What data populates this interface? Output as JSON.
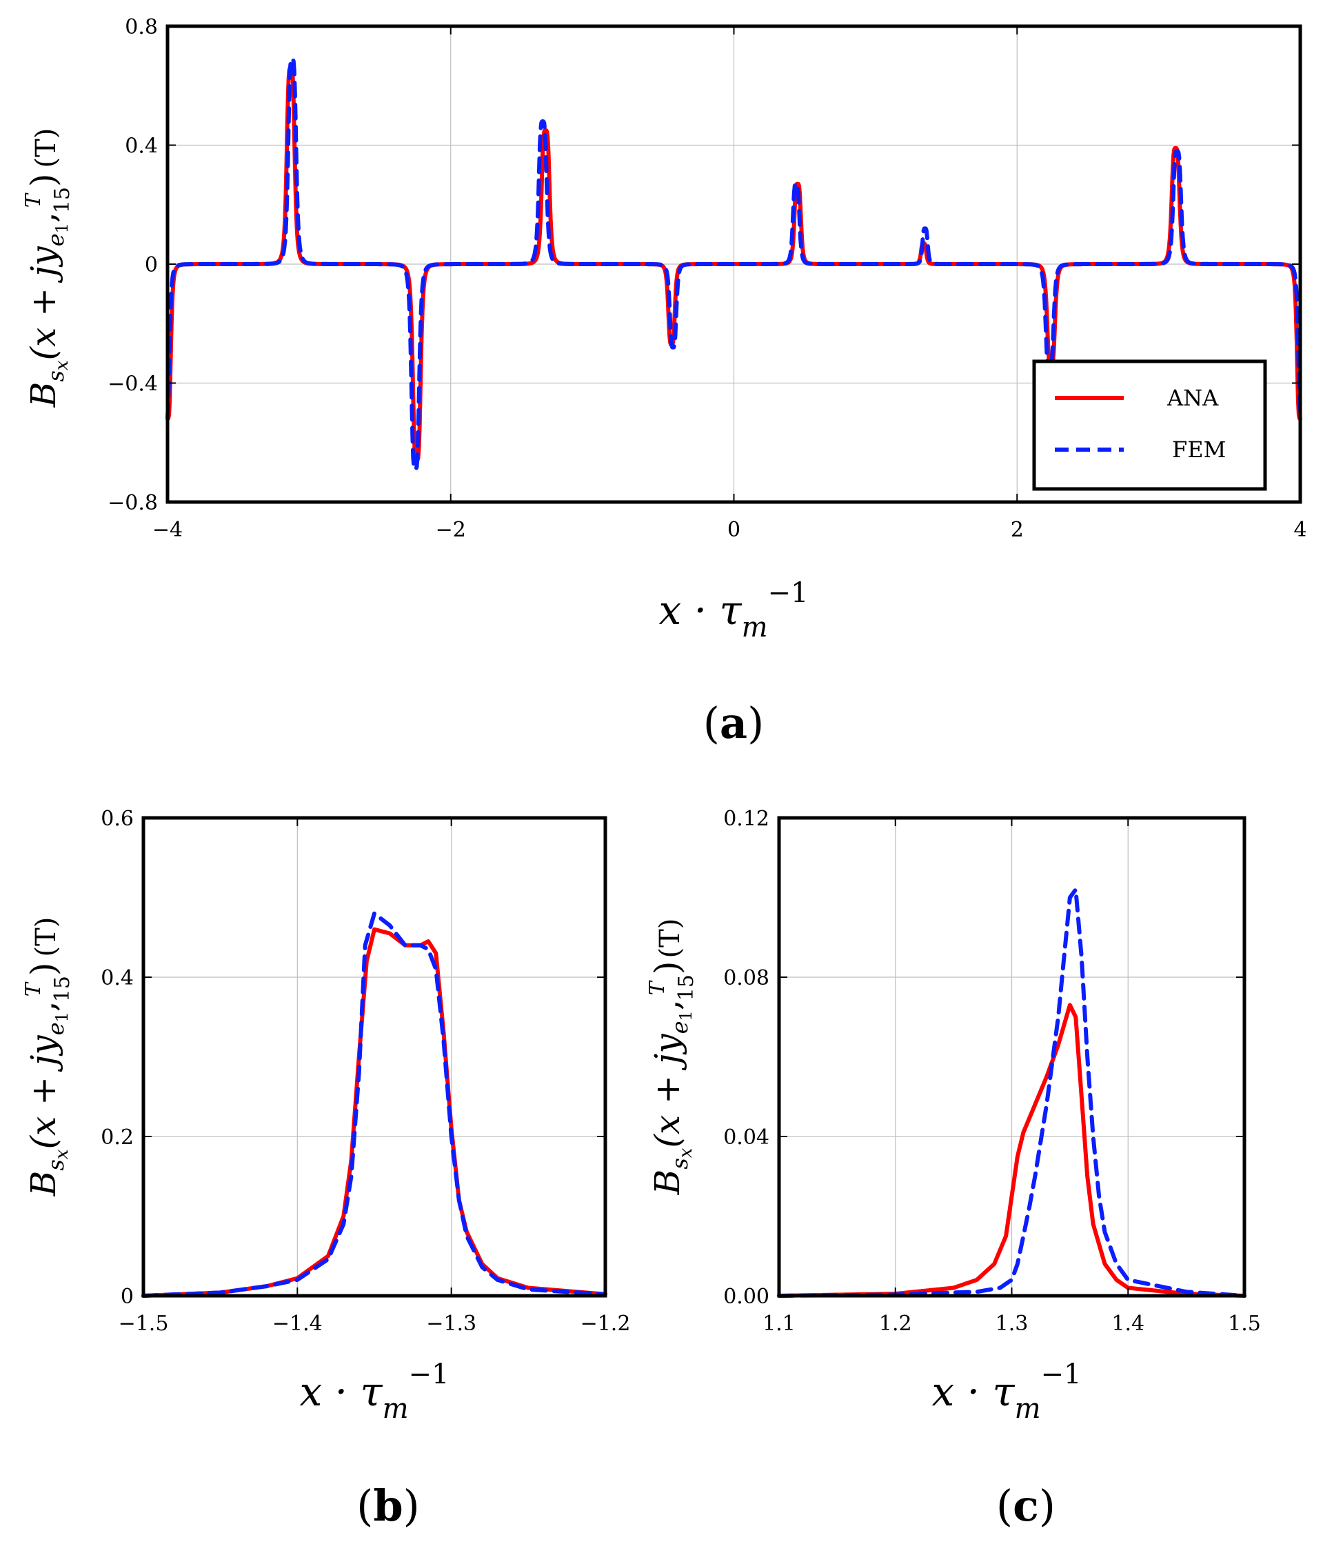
{
  "colors": {
    "ana": "#ff0000",
    "fem": "#0a1eff",
    "frame": "#000000"
  },
  "ylabel_parts": {
    "b": "B",
    "s": "s",
    "x_sub": "x",
    "open": "(x + jy",
    "e": "e",
    "one": "1",
    "comma": ",",
    "T": "T",
    "fifteen": "15",
    "close": ")",
    "unit": "(T)"
  },
  "xlabel_parts": {
    "main": "x · τ",
    "sub": "m",
    "sup": "−1"
  },
  "chart_data": [
    {
      "id": "a",
      "panel_label": "(a)",
      "panel_letter": "a",
      "type": "line",
      "xlim": [
        -4,
        4
      ],
      "ylim": [
        -0.8,
        0.8
      ],
      "xticks": [
        -4,
        -2,
        0,
        2,
        4
      ],
      "xtick_labels": [
        "−4",
        "−2",
        "0",
        "2",
        "4"
      ],
      "yticks": [
        -0.8,
        -0.4,
        0,
        0.4,
        0.8
      ],
      "ytick_labels": [
        "−0.8",
        "−0.4",
        "0",
        "0.4",
        "0.8"
      ],
      "legend": {
        "position": "bottom-right",
        "entries": [
          "ANA",
          "FEM"
        ]
      },
      "series": [
        {
          "name": "ANA",
          "style": "solid",
          "peaks": [
            {
              "x": -4.0,
              "a": -0.52,
              "w": 0.025
            },
            {
              "x": -3.13,
              "a": 0.66,
              "w": 0.03
            },
            {
              "x": -2.24,
              "a": -0.66,
              "w": 0.03
            },
            {
              "x": -1.33,
              "a": 0.45,
              "w": 0.03
            },
            {
              "x": -0.44,
              "a": -0.27,
              "w": 0.025
            },
            {
              "x": 0.45,
              "a": 0.27,
              "w": 0.025
            },
            {
              "x": 1.34,
              "a": 0.07,
              "w": 0.02
            },
            {
              "x": 2.24,
              "a": -0.34,
              "w": 0.03
            },
            {
              "x": 3.12,
              "a": 0.39,
              "w": 0.03
            },
            {
              "x": 4.0,
              "a": -0.52,
              "w": 0.025
            }
          ]
        },
        {
          "name": "FEM",
          "style": "dashed",
          "peaks": [
            {
              "x": -4.01,
              "a": -0.53,
              "w": 0.025
            },
            {
              "x": -3.12,
              "a": 0.69,
              "w": 0.03
            },
            {
              "x": -2.25,
              "a": -0.69,
              "w": 0.03
            },
            {
              "x": -1.35,
              "a": 0.48,
              "w": 0.03
            },
            {
              "x": -0.43,
              "a": -0.28,
              "w": 0.025
            },
            {
              "x": 0.44,
              "a": 0.27,
              "w": 0.025
            },
            {
              "x": 1.35,
              "a": 0.12,
              "w": 0.02
            },
            {
              "x": 2.23,
              "a": -0.36,
              "w": 0.03
            },
            {
              "x": 3.13,
              "a": 0.38,
              "w": 0.03
            },
            {
              "x": 4.01,
              "a": -0.53,
              "w": 0.025
            }
          ]
        }
      ]
    },
    {
      "id": "b",
      "panel_label": "(b)",
      "panel_letter": "b",
      "type": "line",
      "xlim": [
        -1.5,
        -1.2
      ],
      "ylim": [
        0,
        0.6
      ],
      "xticks": [
        -1.5,
        -1.4,
        -1.3,
        -1.2
      ],
      "xtick_labels": [
        "−1.5",
        "−1.4",
        "−1.3",
        "−1.2"
      ],
      "yticks": [
        0,
        0.2,
        0.4,
        0.6
      ],
      "ytick_labels": [
        "0",
        "0.2",
        "0.4",
        "0.6"
      ],
      "series": [
        {
          "name": "ANA",
          "style": "solid",
          "x": [
            -1.5,
            -1.45,
            -1.42,
            -1.4,
            -1.38,
            -1.37,
            -1.365,
            -1.36,
            -1.355,
            -1.35,
            -1.34,
            -1.33,
            -1.32,
            -1.315,
            -1.31,
            -1.305,
            -1.3,
            -1.295,
            -1.29,
            -1.28,
            -1.27,
            -1.25,
            -1.2
          ],
          "y": [
            0.0,
            0.004,
            0.012,
            0.022,
            0.05,
            0.1,
            0.17,
            0.3,
            0.42,
            0.46,
            0.455,
            0.44,
            0.44,
            0.445,
            0.43,
            0.33,
            0.21,
            0.12,
            0.08,
            0.04,
            0.022,
            0.01,
            0.002
          ]
        },
        {
          "name": "FEM",
          "style": "dashed",
          "x": [
            -1.5,
            -1.45,
            -1.42,
            -1.4,
            -1.38,
            -1.37,
            -1.365,
            -1.36,
            -1.356,
            -1.35,
            -1.34,
            -1.33,
            -1.32,
            -1.315,
            -1.31,
            -1.305,
            -1.3,
            -1.295,
            -1.29,
            -1.28,
            -1.27,
            -1.25,
            -1.2
          ],
          "y": [
            0.0,
            0.004,
            0.012,
            0.02,
            0.046,
            0.09,
            0.15,
            0.28,
            0.44,
            0.48,
            0.465,
            0.44,
            0.44,
            0.435,
            0.41,
            0.32,
            0.2,
            0.12,
            0.075,
            0.036,
            0.02,
            0.008,
            0.002
          ]
        }
      ]
    },
    {
      "id": "c",
      "panel_label": "(c)",
      "panel_letter": "c",
      "type": "line",
      "xlim": [
        1.1,
        1.5
      ],
      "ylim": [
        0,
        0.12
      ],
      "xticks": [
        1.1,
        1.2,
        1.3,
        1.4,
        1.5
      ],
      "xtick_labels": [
        "1.1",
        "1.2",
        "1.3",
        "1.4",
        "1.5"
      ],
      "yticks": [
        0,
        0.04,
        0.08,
        0.12
      ],
      "ytick_labels": [
        "0.00",
        "0.04",
        "0.08",
        "0.12"
      ],
      "series": [
        {
          "name": "ANA",
          "style": "solid",
          "x": [
            1.1,
            1.2,
            1.25,
            1.27,
            1.285,
            1.295,
            1.3,
            1.305,
            1.31,
            1.32,
            1.33,
            1.34,
            1.345,
            1.35,
            1.355,
            1.36,
            1.365,
            1.37,
            1.38,
            1.39,
            1.4,
            1.45,
            1.5
          ],
          "y": [
            0.0,
            0.0005,
            0.002,
            0.004,
            0.008,
            0.015,
            0.025,
            0.035,
            0.041,
            0.048,
            0.055,
            0.063,
            0.068,
            0.073,
            0.07,
            0.05,
            0.03,
            0.018,
            0.008,
            0.004,
            0.002,
            0.0005,
            0.0
          ]
        },
        {
          "name": "FEM",
          "style": "dashed",
          "x": [
            1.1,
            1.2,
            1.27,
            1.29,
            1.3,
            1.305,
            1.31,
            1.315,
            1.32,
            1.33,
            1.34,
            1.345,
            1.35,
            1.355,
            1.36,
            1.365,
            1.37,
            1.375,
            1.38,
            1.39,
            1.4,
            1.45,
            1.5
          ],
          "y": [
            0.0,
            0.0003,
            0.001,
            0.002,
            0.004,
            0.008,
            0.015,
            0.022,
            0.03,
            0.048,
            0.07,
            0.085,
            0.1,
            0.102,
            0.085,
            0.06,
            0.04,
            0.025,
            0.016,
            0.008,
            0.004,
            0.001,
            0.0
          ]
        }
      ]
    }
  ]
}
